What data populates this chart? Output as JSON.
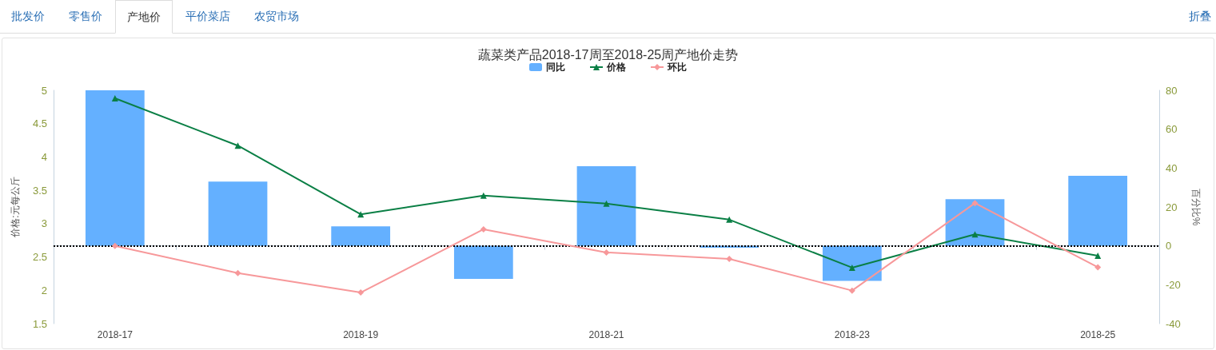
{
  "chart_data": {
    "type": "bar",
    "title": "蔬菜类产品2018-17周至2018-25周产地价走势",
    "categories": [
      "2018-17",
      null,
      "2018-19",
      null,
      "2018-21",
      null,
      "2018-23",
      null,
      "2018-25"
    ],
    "series": [
      {
        "name": "同比",
        "axis": "y2",
        "color": "#64b0ff",
        "values": [
          80,
          33,
          10,
          -17,
          41,
          -1,
          -18,
          24,
          36
        ]
      },
      {
        "name": "价格",
        "type": "line",
        "axis": "y",
        "marker": "triangle",
        "color": "#0a7f45",
        "values": [
          4.88,
          4.17,
          3.14,
          3.42,
          3.3,
          3.06,
          2.34,
          2.84,
          2.52
        ]
      },
      {
        "name": "环比",
        "type": "line",
        "axis": "y2",
        "marker": "diamond",
        "color": "#f7989a",
        "values": [
          0,
          -14,
          -24,
          8.5,
          -3.4,
          -6.7,
          -23,
          22,
          -11
        ]
      }
    ],
    "ylabel": "价格:元每公斤",
    "y2label": "百分比%",
    "ylim": [
      1.5,
      5
    ],
    "yticks": [
      1.5,
      2,
      2.5,
      3,
      3.5,
      4,
      4.5,
      5
    ],
    "y2lim": [
      -40,
      80
    ],
    "y2ticks": [
      -40,
      -20,
      0,
      20,
      40,
      60,
      80
    ],
    "ref_lines": [
      {
        "axis": "y2",
        "value": 0,
        "color": "#000000",
        "line_style": "dotted"
      }
    ],
    "grid": false,
    "legend": "top",
    "annotations": [
      "批发价",
      "零售价",
      "产地价",
      "平价菜店",
      "农贸市场",
      "折叠"
    ]
  }
}
